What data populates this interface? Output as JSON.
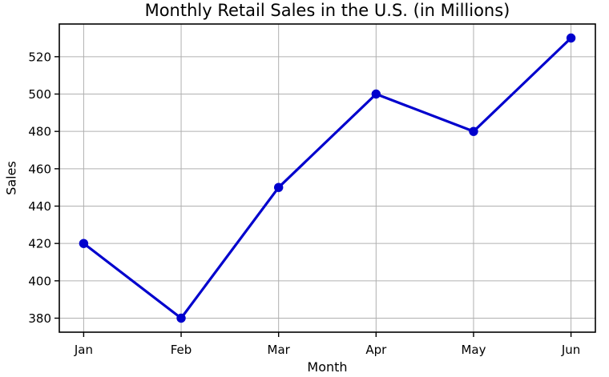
{
  "chart_data": {
    "type": "line",
    "title": "Monthly Retail Sales in the U.S. (in Millions)",
    "xlabel": "Month",
    "ylabel": "Sales",
    "categories": [
      "Jan",
      "Feb",
      "Mar",
      "Apr",
      "May",
      "Jun"
    ],
    "series": [
      {
        "name": "Sales",
        "values": [
          420,
          380,
          450,
          500,
          480,
          530
        ]
      }
    ],
    "values": [
      420,
      380,
      450,
      500,
      480,
      530
    ],
    "yticks": [
      380,
      400,
      420,
      440,
      460,
      480,
      500,
      520
    ],
    "ylim": [
      372.5,
      537.5
    ],
    "grid": true,
    "legend_position": "none",
    "line_color": "#0000cd",
    "marker": "circle",
    "grid_color": "#b0b0b0",
    "spine_color": "#000000",
    "background_color": "#ffffff",
    "text_color": "#000000"
  }
}
